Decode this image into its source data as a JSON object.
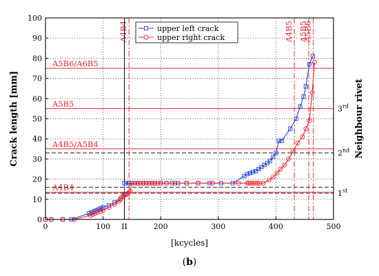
{
  "chart_data": {
    "type": "line",
    "xlabel": "[kcycles]",
    "ylabel": "Crack length [mm]",
    "right_axis_label": "Neighbour rivet",
    "xlim": [
      0,
      500
    ],
    "ylim": [
      0,
      100
    ],
    "x_ticks": [
      "0",
      "100",
      "II",
      "200",
      "300",
      "400",
      "500"
    ],
    "x_tick_values": [
      0,
      100,
      137,
      200,
      300,
      400,
      500
    ],
    "y_ticks": [
      0,
      10,
      20,
      30,
      40,
      50,
      60,
      70,
      80,
      90,
      100
    ],
    "grid": true,
    "legend_position": "top-center",
    "colors": {
      "left": "#1f3fd8",
      "right": "#e8262e",
      "black": "#000000"
    },
    "series": [
      {
        "name": "upper left crack",
        "color": "#1f3fd8",
        "marker": "square",
        "x": [
          0,
          10,
          30,
          45,
          76,
          80,
          84,
          88,
          92,
          96,
          100,
          110,
          120,
          130,
          137,
          137,
          140,
          145,
          150,
          155,
          160,
          165,
          170,
          175,
          180,
          185,
          190,
          200,
          210,
          220,
          230,
          245,
          265,
          285,
          305,
          325,
          345,
          350,
          355,
          360,
          365,
          370,
          375,
          380,
          385,
          390,
          395,
          400,
          405,
          410,
          425,
          435,
          442,
          448,
          452,
          458,
          464
        ],
        "y": [
          0,
          0,
          0,
          0,
          3,
          3.5,
          4,
          4.5,
          5,
          5.5,
          6,
          7,
          8.5,
          10,
          12.5,
          18,
          18,
          18,
          18,
          18,
          18,
          18,
          18,
          18,
          18,
          18,
          18,
          18,
          18,
          18,
          18,
          18,
          18,
          18,
          18,
          18,
          21.5,
          22.5,
          23,
          23.5,
          24,
          25,
          26,
          27,
          28,
          29,
          31,
          33,
          39,
          39,
          45,
          50,
          56,
          61,
          66,
          77,
          81
        ]
      },
      {
        "name": "upper right crack",
        "color": "#e8262e",
        "marker": "circle",
        "x": [
          0,
          10,
          30,
          50,
          78,
          82,
          86,
          90,
          95,
          100,
          110,
          120,
          127,
          130,
          132,
          135,
          138,
          141,
          143,
          145,
          147,
          150,
          155,
          160,
          165,
          170,
          175,
          180,
          185,
          190,
          195,
          200,
          210,
          225,
          245,
          265,
          290,
          335,
          350,
          353,
          356,
          360,
          364,
          368,
          372,
          378,
          388,
          395,
          402,
          408,
          415,
          422,
          430,
          438,
          446,
          452,
          458,
          463,
          467
        ],
        "y": [
          0,
          0,
          0,
          0,
          2,
          2.5,
          3,
          3.5,
          4,
          4.5,
          6,
          7.5,
          9,
          10,
          11,
          11.5,
          12,
          12.5,
          13,
          13.5,
          14,
          18,
          18,
          18,
          18,
          18,
          18,
          18,
          18,
          18,
          18,
          18,
          18,
          18,
          18,
          18,
          18,
          18,
          18,
          18,
          18,
          18,
          18,
          18,
          18,
          18,
          19.5,
          21,
          23,
          25,
          27,
          30,
          34,
          38,
          41,
          45,
          49,
          63,
          78
        ]
      }
    ],
    "h_ref_lines": [
      {
        "label": "A4B4",
        "y": 13.5,
        "style": "solid",
        "color": "#e8262e"
      },
      {
        "label": "A4B5/A5B4",
        "y": 35,
        "style": "solid",
        "color": "#e8262e"
      },
      {
        "label": "A5B5",
        "y": 55,
        "style": "solid",
        "color": "#e8262e"
      },
      {
        "label": "A5B6/A6B5",
        "y": 75,
        "style": "solid",
        "color": "#e8262e"
      },
      {
        "label": "",
        "y": 13,
        "style": "dashed",
        "color": "#000000"
      },
      {
        "label": "",
        "y": 33,
        "style": "dashed",
        "color": "#000000"
      },
      {
        "label": "",
        "y": 16,
        "style": "dashed",
        "color": "#000000"
      }
    ],
    "rivet_labels": [
      {
        "text": "1st",
        "y": 13
      },
      {
        "text": "2nd",
        "y": 33
      },
      {
        "text": "3rd",
        "y": 55
      }
    ],
    "v_ref_lines": [
      {
        "label": "A4B4",
        "x": 145,
        "style": "dashdot",
        "color": "#e8262e"
      },
      {
        "label": "A4B5",
        "x": 432,
        "style": "dashdot",
        "color": "#e8262e"
      },
      {
        "label": "A5B5",
        "x": 457,
        "style": "dashdot",
        "color": "#e8262e"
      },
      {
        "label": "A5B6",
        "x": 465,
        "style": "dashdot",
        "color": "#e8262e"
      },
      {
        "label": "",
        "x": 137,
        "style": "solid",
        "color": "#000000"
      }
    ]
  },
  "caption": {
    "open": "(",
    "letter": "b",
    "close": ")"
  }
}
